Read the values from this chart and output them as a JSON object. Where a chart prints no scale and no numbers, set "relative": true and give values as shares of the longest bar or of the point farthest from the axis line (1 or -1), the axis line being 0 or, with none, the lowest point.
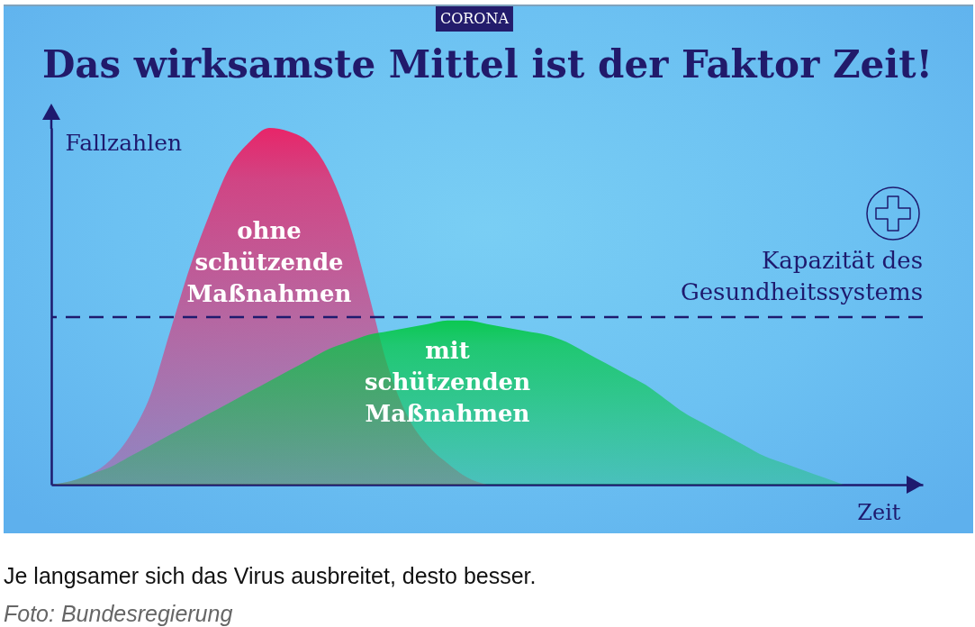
{
  "chart_data": {
    "type": "area",
    "subtitle": "CORONA",
    "title": "Das wirksamste Mittel ist der Faktor Zeit!",
    "xlabel": "Zeit",
    "ylabel": "Fallzahlen",
    "relative": true,
    "categories": [
      null,
      null,
      null,
      null,
      null,
      null,
      null,
      null,
      null,
      null,
      null,
      null,
      null,
      null,
      null,
      null,
      null,
      null,
      null,
      null,
      null,
      null,
      null,
      null,
      null,
      null,
      null,
      null,
      null,
      null,
      null,
      null,
      null,
      null,
      null,
      null,
      null,
      null,
      null,
      null,
      null,
      null,
      null,
      null,
      null
    ],
    "series": [
      {
        "name": "ohne schützende Maßnahmen",
        "color": "#f5145a",
        "values": [
          0,
          0.01,
          0.03,
          0.07,
          0.14,
          0.25,
          0.43,
          0.61,
          0.76,
          0.89,
          0.96,
          1,
          0.99,
          0.96,
          0.88,
          0.74,
          0.54,
          0.33,
          0.19,
          0.11,
          0.06,
          0.02,
          0,
          null,
          null,
          null,
          null,
          null,
          null,
          null,
          null,
          null,
          null,
          null,
          null,
          null,
          null,
          null,
          null,
          null,
          null,
          null,
          null,
          null,
          null
        ]
      },
      {
        "name": "mit schützenden Maßnahmen",
        "color": "#00c840",
        "values": [
          0,
          0.01,
          0.03,
          0.05,
          0.08,
          0.11,
          0.14,
          0.17,
          0.2,
          0.23,
          0.26,
          0.29,
          0.32,
          0.35,
          0.38,
          0.4,
          0.42,
          0.43,
          0.44,
          0.45,
          0.46,
          0.46,
          0.45,
          0.44,
          0.43,
          0.42,
          0.4,
          0.37,
          0.34,
          0.31,
          0.28,
          0.24,
          0.2,
          0.17,
          0.14,
          0.11,
          0.08,
          0.06,
          0.04,
          0.02,
          0,
          null,
          null,
          null,
          null
        ]
      }
    ],
    "ref_lines": [
      {
        "axis": "y",
        "value": 0.47,
        "label": "Kapazität des Gesundheitssystems",
        "line_style": "dashed",
        "color": "#1e1a6e"
      }
    ],
    "annotations": [
      "Je langsamer sich das Virus ausbreitet, desto besser.",
      "Foto: Bundesregierung"
    ]
  }
}
